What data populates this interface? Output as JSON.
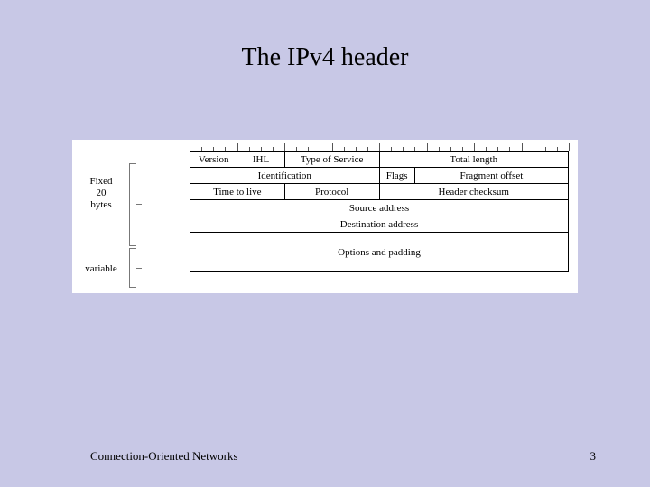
{
  "slide": {
    "title": "The IPv4 header",
    "footer_left": "Connection-Oriented Networks",
    "page_number": "3",
    "background_color": "#c8c8e6"
  },
  "diagram": {
    "type": "table",
    "total_bits": 32,
    "ruler": {
      "major_every": 4,
      "minor_every": 1
    },
    "left_annotations": {
      "fixed": {
        "lines": [
          "Fixed",
          "20",
          "bytes"
        ],
        "rows_span": [
          0,
          4
        ]
      },
      "variable": {
        "label": "variable",
        "rows_span": [
          5,
          5
        ]
      }
    },
    "rows": [
      {
        "cells": [
          {
            "label": "Version",
            "bits": 4
          },
          {
            "label": "IHL",
            "bits": 4
          },
          {
            "label": "Type of Service",
            "bits": 8
          },
          {
            "label": "Total length",
            "bits": 16
          }
        ]
      },
      {
        "cells": [
          {
            "label": "Identification",
            "bits": 16
          },
          {
            "label": "Flags",
            "bits": 3
          },
          {
            "label": "Fragment offset",
            "bits": 13
          }
        ]
      },
      {
        "cells": [
          {
            "label": "Time to live",
            "bits": 8
          },
          {
            "label": "Protocol",
            "bits": 8
          },
          {
            "label": "Header checksum",
            "bits": 16
          }
        ]
      },
      {
        "cells": [
          {
            "label": "Source address",
            "bits": 32
          }
        ]
      },
      {
        "cells": [
          {
            "label": "Destination address",
            "bits": 32
          }
        ]
      },
      {
        "cells": [
          {
            "label": "Options and padding",
            "bits": 32,
            "tall": true
          }
        ]
      }
    ],
    "style": {
      "cell_border_color": "#000000",
      "cell_font_size": 11,
      "background": "#ffffff",
      "bracket_color": "#777777"
    }
  }
}
